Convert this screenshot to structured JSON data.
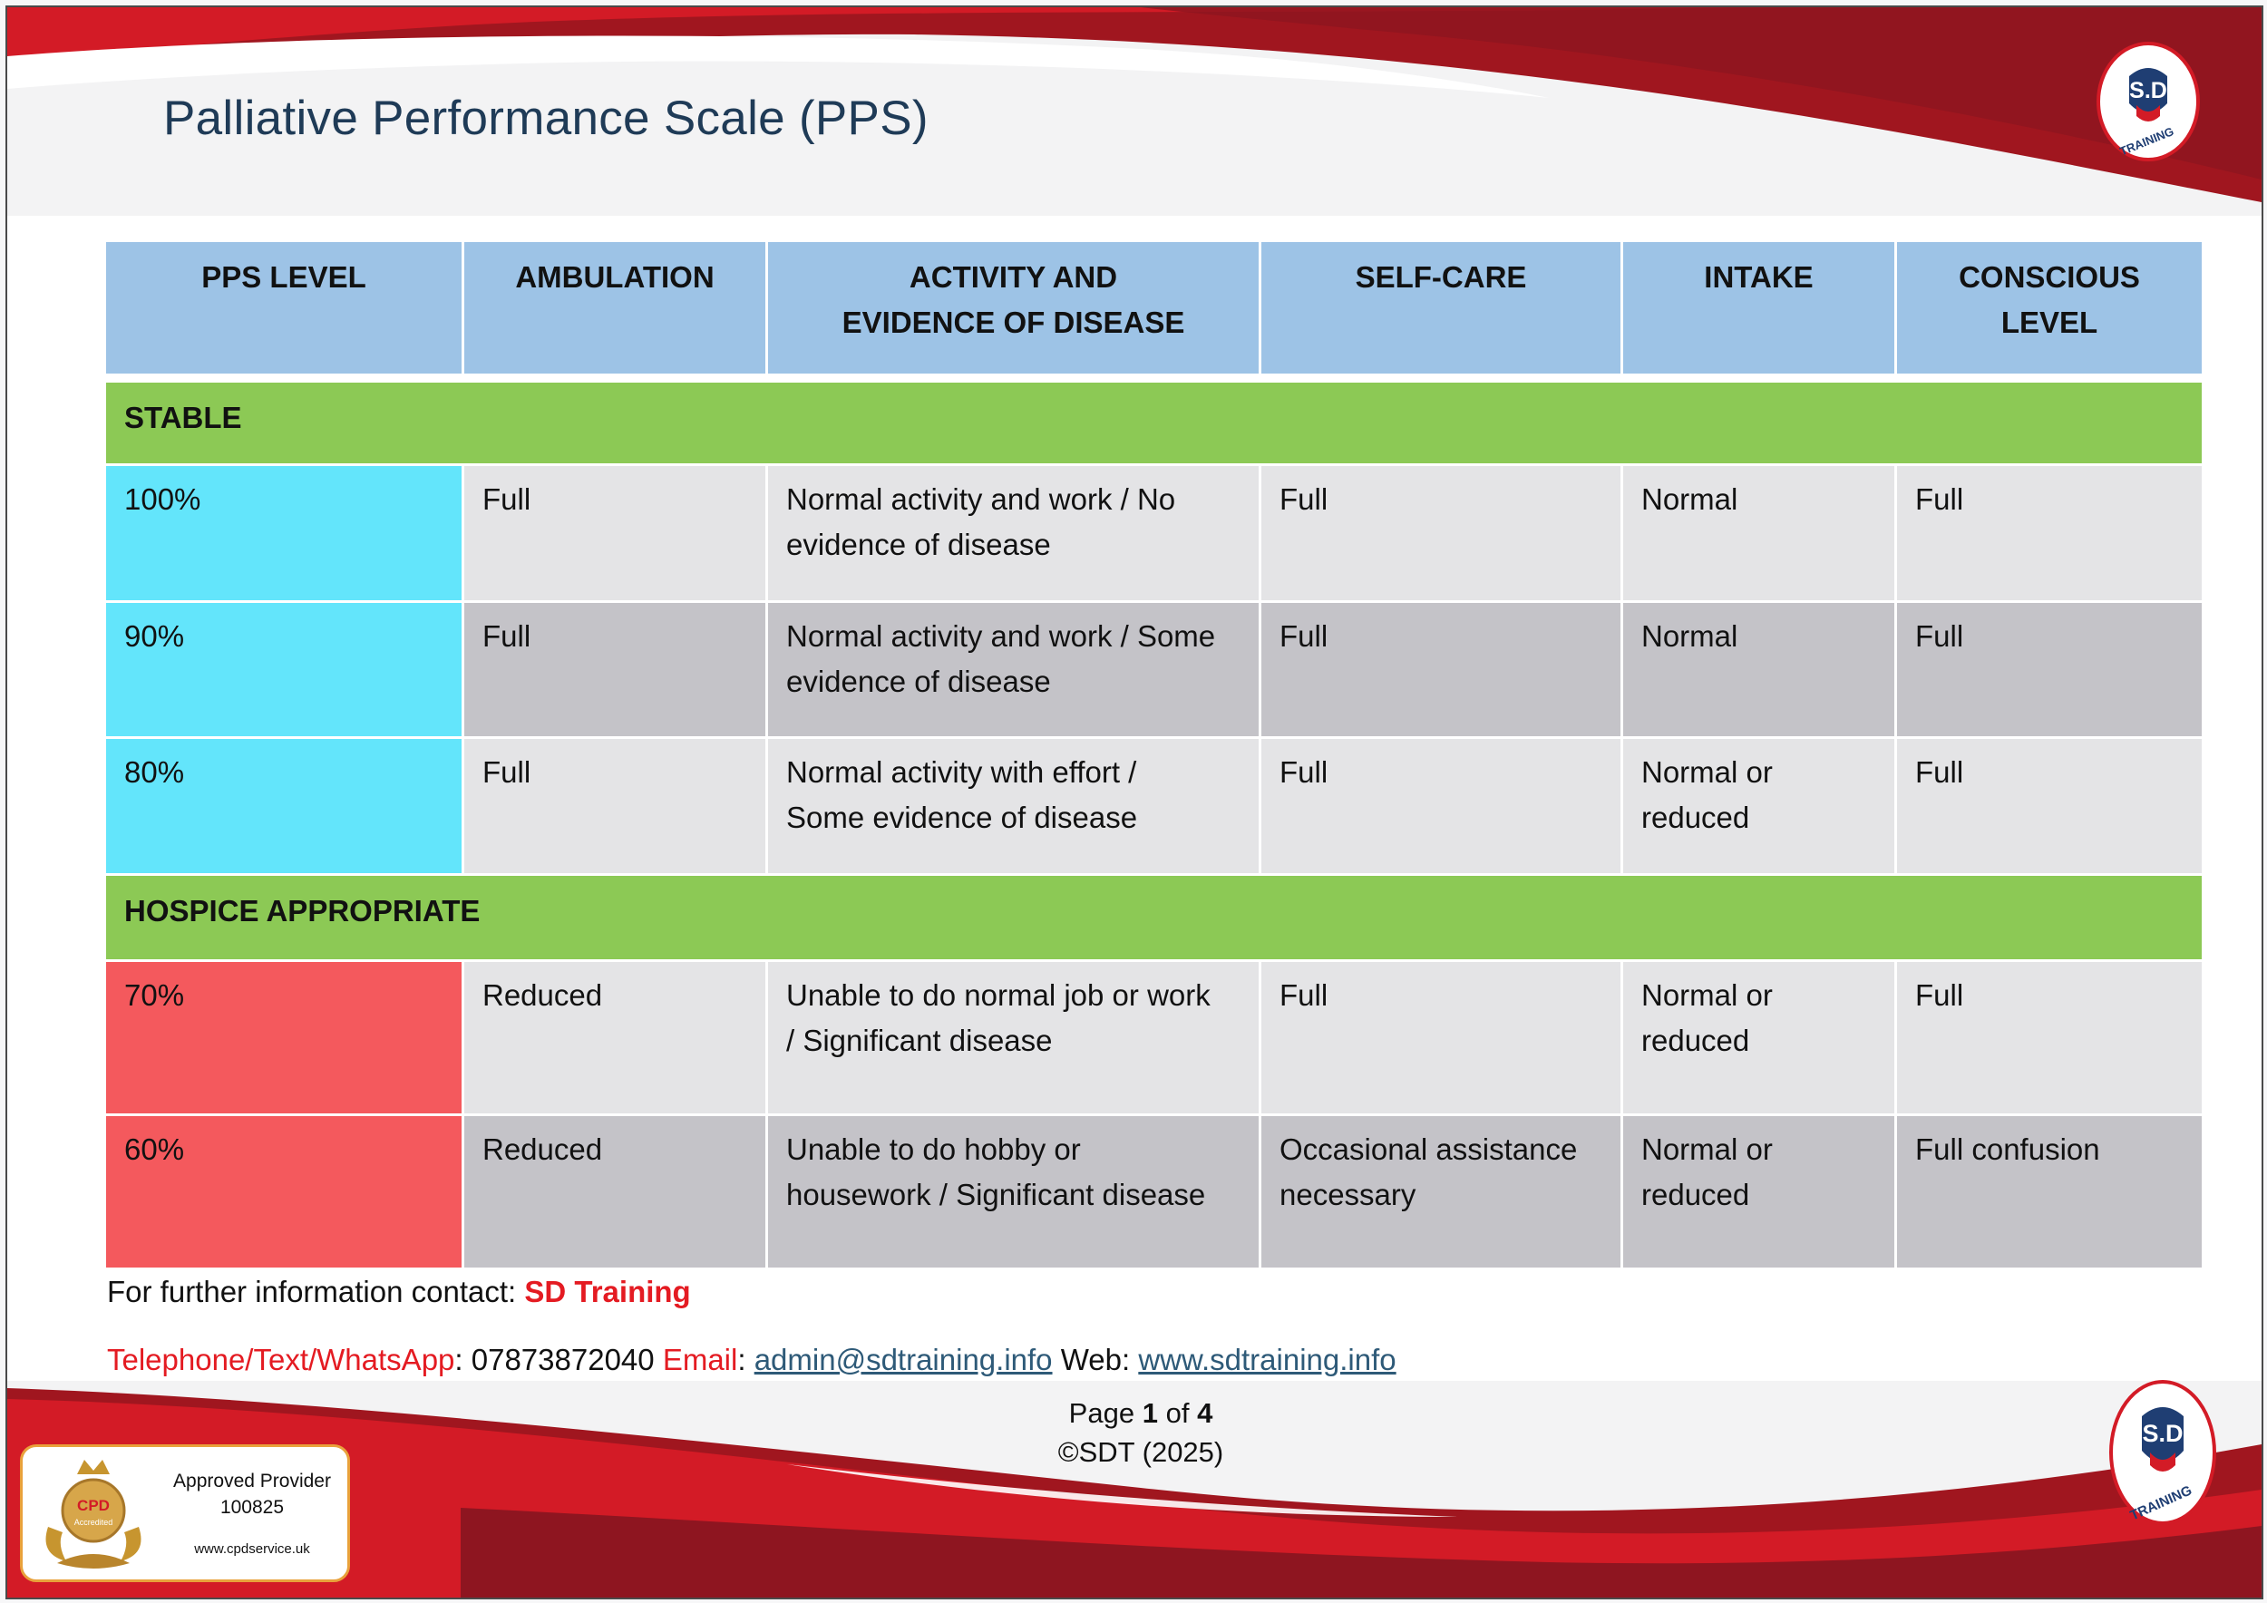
{
  "document": {
    "title": "Palliative Performance Scale (PPS)",
    "brand_color": "#e41b22",
    "accent_dark": "#8b1520"
  },
  "table": {
    "headers": [
      [
        "PPS LEVEL"
      ],
      [
        "AMBULATION"
      ],
      [
        "ACTIVITY AND",
        "EVIDENCE OF DISEASE"
      ],
      [
        "SELF-CARE"
      ],
      [
        "INTAKE"
      ],
      [
        "CONSCIOUS",
        "LEVEL"
      ]
    ],
    "sections": [
      {
        "label": "STABLE",
        "rows": [
          {
            "level": "100%",
            "ambulation": "Full",
            "activity": [
              "Normal activity and work / No",
              "evidence of disease"
            ],
            "self_care": "Full",
            "intake": [
              "Normal"
            ],
            "conscious": "Full"
          },
          {
            "level": "90%",
            "ambulation": "Full",
            "activity": [
              "Normal activity and work / Some",
              "evidence of disease"
            ],
            "self_care": "Full",
            "intake": [
              "Normal"
            ],
            "conscious": "Full"
          },
          {
            "level": "80%",
            "ambulation": "Full",
            "activity": [
              "Normal activity with effort /",
              "Some evidence of disease"
            ],
            "self_care": "Full",
            "intake": [
              "Normal or",
              "reduced"
            ],
            "conscious": "Full"
          }
        ]
      },
      {
        "label": "HOSPICE APPROPRIATE",
        "rows": [
          {
            "level": "70%",
            "ambulation": "Reduced",
            "activity": [
              "Unable to do normal job or work",
              "/ Significant disease"
            ],
            "self_care": [
              "Full"
            ],
            "intake": [
              "Normal or",
              "reduced"
            ],
            "conscious": "Full"
          },
          {
            "level": "60%",
            "ambulation": "Reduced",
            "activity": [
              "Unable to do hobby or",
              "housework / Significant disease"
            ],
            "self_care": [
              "Occasional assistance",
              "necessary"
            ],
            "intake": [
              "Normal or",
              "reduced"
            ],
            "conscious": "Full confusion"
          }
        ]
      }
    ]
  },
  "contact": {
    "prefix": "For further information contact: ",
    "company": "SD Training",
    "phone_label": "Telephone/Text/WhatsApp",
    "phone": "07873872040",
    "email_label": "Email",
    "email": "admin@sdtraining.info",
    "web_label": "Web:",
    "web": "www.sdtraining.info"
  },
  "footer": {
    "page_word": "Page",
    "page_current": "1",
    "page_of": "of",
    "page_total": "4",
    "copyright": "©SDT (2025)"
  },
  "cpd_badge": {
    "approved": "Approved Provider",
    "number": "100825",
    "website": "www.cpdservice.uk",
    "emblem_text": [
      "CPD",
      "Accredited"
    ]
  },
  "logo": {
    "mark": "S.D",
    "caption": "TRAINING"
  }
}
